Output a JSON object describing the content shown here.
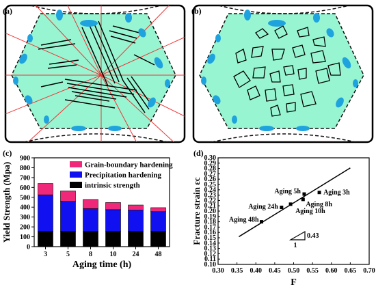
{
  "panels": {
    "a": {
      "label": "(a)"
    },
    "b": {
      "label": "(b)"
    },
    "c": {
      "label": "(c)"
    },
    "d": {
      "label": "(d)"
    }
  },
  "chart_data": [
    {
      "type": "bar",
      "stacked": true,
      "title": "",
      "xlabel": "Aging time (h)",
      "ylabel": "Yield Strength (Mpa)",
      "categories": [
        "3",
        "5",
        "8",
        "10",
        "24",
        "48"
      ],
      "ylim": [
        0,
        900
      ],
      "yticks": [
        0,
        100,
        200,
        300,
        400,
        500,
        600,
        700,
        800,
        900
      ],
      "legend_position": "top-right",
      "series": [
        {
          "name": "intrinsic strength",
          "color": "#000000",
          "values": [
            155,
            155,
            155,
            155,
            155,
            155
          ]
        },
        {
          "name": "Precipitation hardening",
          "color": "#1010f0",
          "values": [
            370,
            305,
            230,
            220,
            215,
            200
          ]
        },
        {
          "name": "Grain-boundary hardening",
          "color": "#f0287a",
          "values": [
            115,
            105,
            93,
            72,
            52,
            40
          ]
        }
      ]
    },
    {
      "type": "scatter",
      "title": "",
      "xlabel": "F",
      "ylabel": "Fracture strain εc",
      "xlim": [
        0.3,
        0.7
      ],
      "ylim": [
        0.1,
        0.3
      ],
      "xticks": [
        "0.30",
        "0.35",
        "0.40",
        "0.45",
        "0.50",
        "0.55",
        "0.60",
        "0.65",
        "0.70"
      ],
      "yticks": [
        "0.10",
        "0.11",
        "0.12",
        "0.13",
        "0.14",
        "0.15",
        "0.16",
        "0.17",
        "0.18",
        "0.19",
        "0.20",
        "0.21",
        "0.22",
        "0.23",
        "0.24",
        "0.25",
        "0.26",
        "0.27",
        "0.28",
        "0.29",
        "0.30"
      ],
      "points": [
        {
          "label": "Aging 3h",
          "x": 0.568,
          "y": 0.235
        },
        {
          "label": "Aging 5h",
          "x": 0.528,
          "y": 0.232
        },
        {
          "label": "Aging 8h",
          "x": 0.525,
          "y": 0.222
        },
        {
          "label": "Aging 10h",
          "x": 0.492,
          "y": 0.213
        },
        {
          "label": "Aging 24h",
          "x": 0.468,
          "y": 0.207
        },
        {
          "label": "Aging 48h",
          "x": 0.415,
          "y": 0.18
        }
      ],
      "fit_line": {
        "x": [
          0.355,
          0.65
        ],
        "y": [
          0.152,
          0.281
        ]
      },
      "slope_label": "0.43",
      "slope_run_label": "1"
    }
  ]
}
